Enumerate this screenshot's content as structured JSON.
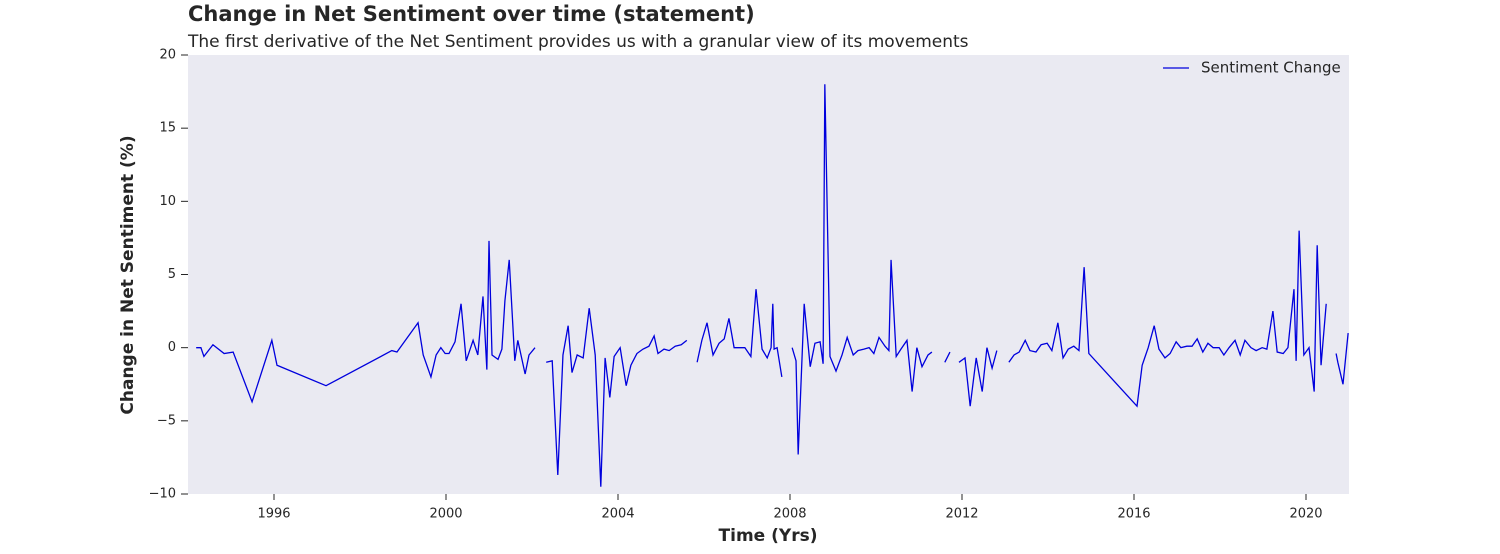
{
  "chart_data": {
    "type": "line",
    "title": "Change in Net Sentiment over time (statement)",
    "subtitle": "The first derivative of the Net Sentiment provides us with a granular view of its movements",
    "x_label": "Time (Yrs)",
    "y_label": "Change in Net Sentiment (%)",
    "xlim": [
      1994,
      2021
    ],
    "xticks": [
      1996,
      2000,
      2004,
      2008,
      2012,
      2016,
      2020
    ],
    "ylim": [
      -10,
      20
    ],
    "yticks": [
      {
        "value": -10,
        "label": "−10"
      },
      {
        "value": -5,
        "label": "−5"
      },
      0,
      5,
      10,
      15,
      20
    ],
    "grid": false,
    "legend": "upper right",
    "background": "#eaeaf2",
    "x": [
      1994.19,
      1994.3,
      1994.37,
      1994.58,
      1994.84,
      1995.05,
      1995.49,
      1995.95,
      1996.07,
      1997.21,
      1998.74,
      1998.86,
      1999.35,
      1999.47,
      1999.65,
      1999.77,
      1999.88,
      1999.98,
      2000.07,
      2000.21,
      2000.35,
      2000.47,
      2000.63,
      2000.74,
      2000.86,
      2000.95,
      2001.0,
      2001.07,
      2001.21,
      2001.3,
      2001.37,
      2001.47,
      2001.6,
      2001.67,
      2001.84,
      2001.93,
      2002.07,
      2002.2,
      2002.33,
      2002.47,
      2002.6,
      2002.72,
      2002.84,
      2002.93,
      2003.05,
      2003.19,
      2003.33,
      2003.47,
      2003.6,
      2003.7,
      2003.81,
      2003.91,
      2004.05,
      2004.19,
      2004.3,
      2004.44,
      2004.58,
      2004.72,
      2004.84,
      2004.93,
      2005.07,
      2005.19,
      2005.33,
      2005.47,
      2005.6,
      2005.72,
      2005.84,
      2005.95,
      2006.07,
      2006.21,
      2006.35,
      2006.47,
      2006.58,
      2006.7,
      2006.84,
      2006.95,
      2007.09,
      2007.21,
      2007.35,
      2007.47,
      2007.56,
      2007.6,
      2007.63,
      2007.7,
      2007.81,
      2007.93,
      2008.05,
      2008.14,
      2008.19,
      2008.33,
      2008.47,
      2008.58,
      2008.7,
      2008.77,
      2008.81,
      2008.93,
      2009.07,
      2009.21,
      2009.33,
      2009.47,
      2009.58,
      2009.72,
      2009.84,
      2009.95,
      2010.07,
      2010.21,
      2010.3,
      2010.35,
      2010.47,
      2010.58,
      2010.72,
      2010.84,
      2010.95,
      2011.07,
      2011.21,
      2011.3,
      2011.45,
      2011.6,
      2011.72,
      2011.83,
      2011.93,
      2012.07,
      2012.19,
      2012.33,
      2012.47,
      2012.58,
      2012.7,
      2012.81,
      2012.95,
      2013.09,
      2013.21,
      2013.33,
      2013.47,
      2013.58,
      2013.72,
      2013.84,
      2013.98,
      2014.09,
      2014.23,
      2014.35,
      2014.47,
      2014.6,
      2014.72,
      2014.84,
      2014.95,
      2016.07,
      2016.19,
      2016.33,
      2016.47,
      2016.58,
      2016.72,
      2016.84,
      2016.98,
      2017.09,
      2017.23,
      2017.35,
      2017.47,
      2017.6,
      2017.72,
      2017.84,
      2017.98,
      2018.09,
      2018.21,
      2018.35,
      2018.47,
      2018.58,
      2018.72,
      2018.84,
      2018.98,
      2019.09,
      2019.23,
      2019.33,
      2019.47,
      2019.58,
      2019.72,
      2019.77,
      2019.84,
      2019.95,
      2020.07,
      2020.19,
      2020.26,
      2020.35,
      2020.47,
      2020.58,
      2020.7,
      2020.74,
      2020.86,
      2020.98
    ],
    "series": [
      {
        "name": "Sentiment Change",
        "color": "#0000dd",
        "values": [
          0,
          0,
          -0.6,
          0.2,
          -0.4,
          -0.3,
          -3.7,
          0.5,
          -1.2,
          -2.6,
          -0.2,
          -0.3,
          1.7,
          -0.5,
          -2,
          -0.5,
          0,
          -0.4,
          -0.4,
          0.4,
          3,
          -0.9,
          0.5,
          -0.5,
          3.5,
          -1.5,
          7.3,
          -0.5,
          -0.8,
          -0.1,
          3.2,
          6,
          -0.9,
          0.5,
          -1.8,
          -0.5,
          0,
          null,
          -1,
          -0.9,
          -8.7,
          -0.5,
          1.5,
          -1.7,
          -0.5,
          -0.7,
          2.7,
          -0.5,
          -9.5,
          -0.7,
          -3.4,
          -0.6,
          0,
          -2.6,
          -1.2,
          -0.4,
          -0.1,
          0.1,
          0.8,
          -0.4,
          -0.1,
          -0.2,
          0.1,
          0.2,
          0.5,
          null,
          -1,
          0.5,
          1.7,
          -0.5,
          0.3,
          0.6,
          2,
          0,
          0,
          0,
          -0.6,
          4,
          -0.1,
          -0.7,
          0,
          3,
          -0.1,
          0,
          -2,
          null,
          0,
          -0.9,
          -7.3,
          3,
          -1.3,
          0.3,
          0.4,
          -1.1,
          18,
          -0.6,
          -1.6,
          -0.5,
          0.7,
          -0.5,
          -0.2,
          -0.1,
          0,
          -0.4,
          0.7,
          0.1,
          -0.2,
          6,
          -0.6,
          -0.1,
          0.5,
          -3,
          0,
          -1.3,
          -0.5,
          -0.3,
          null,
          -1,
          -0.3,
          null,
          -1,
          -0.7,
          -4,
          -0.7,
          -3,
          0,
          -1.4,
          -0.2,
          null,
          -1,
          -0.5,
          -0.3,
          0.5,
          -0.2,
          -0.3,
          0.2,
          0.3,
          -0.2,
          1.7,
          -0.7,
          -0.1,
          0.1,
          -0.2,
          5.5,
          -0.4,
          -4,
          -1.2,
          0,
          1.5,
          -0.1,
          -0.7,
          -0.4,
          0.4,
          0,
          0.1,
          0.1,
          0.6,
          -0.3,
          0.3,
          0,
          0,
          -0.5,
          0,
          0.5,
          -0.5,
          0.5,
          0,
          -0.2,
          0,
          -0.1,
          2.5,
          -0.3,
          -0.4,
          0,
          4,
          -0.9,
          8,
          -0.5,
          0,
          -3,
          7,
          -1.2,
          3,
          null,
          -0.4,
          -1,
          -2.5,
          1
        ]
      }
    ]
  }
}
